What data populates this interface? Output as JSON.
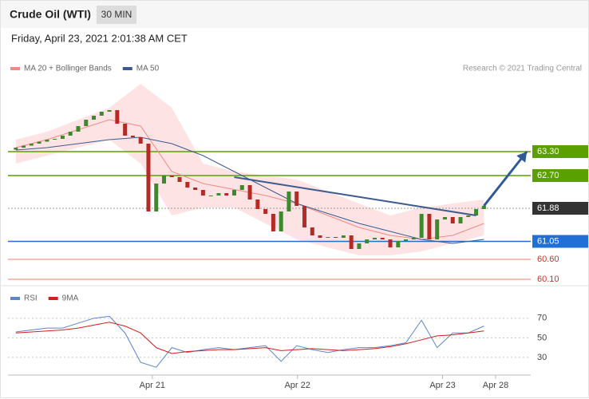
{
  "chart_data": [
    {
      "type": "candlestick",
      "title": "Crude Oil (WTI)",
      "timeframe": "30 MIN",
      "subtitle": "Friday, April 23, 2021 2:01:38 AM CET",
      "credit": "Research © 2021 Trading Central",
      "xlim": [
        -1,
        66
      ],
      "ylim": [
        60,
        65.2
      ],
      "up_color": "#3d8a2c",
      "down_color": "#b52a24",
      "x": [
        0,
        1,
        2,
        3,
        4,
        5,
        6,
        7,
        8,
        9,
        10,
        11,
        12,
        13,
        14,
        15,
        16,
        17,
        18,
        19,
        20,
        21,
        22,
        23,
        24,
        25,
        26,
        27,
        28,
        29,
        30,
        31,
        32,
        33,
        34,
        35,
        36,
        37,
        38,
        39,
        40,
        41,
        42,
        43,
        44,
        45,
        46,
        47,
        48,
        49,
        50,
        51,
        52,
        53,
        54,
        55,
        56,
        57,
        58,
        59,
        60
      ],
      "open": [
        63.35,
        63.4,
        63.45,
        63.5,
        63.55,
        63.6,
        63.62,
        63.7,
        63.8,
        63.94,
        64.1,
        64.2,
        64.3,
        64.34,
        64.0,
        63.7,
        63.66,
        63.5,
        61.8,
        62.5,
        62.7,
        62.66,
        62.54,
        62.4,
        62.34,
        62.2,
        62.2,
        62.26,
        62.2,
        62.34,
        62.46,
        62.1,
        61.86,
        61.74,
        61.3,
        61.8,
        62.3,
        61.94,
        61.4,
        61.2,
        61.14,
        61.16,
        61.14,
        61.2,
        60.86,
        61.0,
        61.1,
        61.14,
        61.1,
        60.9,
        61.06,
        61.1,
        61.14,
        61.74,
        61.1,
        61.6,
        61.66,
        61.5,
        61.66,
        61.7,
        61.86
      ],
      "close": [
        63.4,
        63.45,
        63.5,
        63.55,
        63.6,
        63.62,
        63.7,
        63.8,
        63.94,
        64.1,
        64.2,
        64.3,
        64.34,
        64.0,
        63.7,
        63.66,
        63.5,
        61.8,
        62.5,
        62.7,
        62.66,
        62.54,
        62.4,
        62.34,
        62.2,
        62.2,
        62.26,
        62.2,
        62.34,
        62.46,
        62.1,
        61.86,
        61.74,
        61.3,
        61.8,
        62.3,
        61.94,
        61.4,
        61.2,
        61.14,
        61.16,
        61.14,
        61.2,
        60.86,
        61.0,
        61.1,
        61.14,
        61.1,
        60.9,
        61.06,
        61.1,
        61.14,
        61.74,
        61.1,
        61.6,
        61.66,
        61.5,
        61.66,
        61.7,
        61.86,
        61.94
      ],
      "series": [
        {
          "name": "MA 20 + Bollinger Bands",
          "color": "#f08a86",
          "band_color": "#fde3e3",
          "x": [
            0,
            4,
            8,
            12,
            16,
            20,
            24,
            28,
            32,
            36,
            40,
            44,
            48,
            52,
            56,
            60
          ],
          "values": [
            63.4,
            63.6,
            63.85,
            64.1,
            63.94,
            62.8,
            62.5,
            62.35,
            62.2,
            62.0,
            61.7,
            61.4,
            61.2,
            61.1,
            61.2,
            61.5
          ],
          "upper": [
            63.6,
            63.8,
            64.1,
            64.4,
            65.0,
            64.4,
            63.0,
            62.8,
            62.7,
            62.6,
            62.3,
            62.0,
            61.7,
            61.9,
            62.0,
            62.1
          ],
          "lower": [
            63.0,
            63.2,
            63.4,
            63.6,
            63.0,
            61.7,
            61.9,
            61.9,
            61.5,
            61.1,
            60.9,
            60.7,
            60.7,
            60.8,
            61.0,
            61.2
          ]
        },
        {
          "name": "MA 50",
          "color": "#3b5b8e",
          "x": [
            0,
            4,
            8,
            12,
            16,
            20,
            24,
            28,
            32,
            36,
            40,
            44,
            48,
            52,
            56,
            60
          ],
          "values": [
            63.34,
            63.4,
            63.5,
            63.6,
            63.66,
            63.5,
            63.2,
            62.8,
            62.4,
            62.0,
            61.75,
            61.5,
            61.3,
            61.1,
            61.0,
            61.1
          ]
        }
      ],
      "trendline": {
        "color": "#3b5b8e",
        "x": [
          28,
          59
        ],
        "values": [
          62.66,
          61.7
        ]
      },
      "arrow": {
        "color": "#2f5a94",
        "x": [
          60,
          65.5
        ],
        "values": [
          61.94,
          63.3
        ]
      },
      "levels": [
        {
          "value": 63.3,
          "label": "63.30",
          "color": "#5aa100",
          "line_color": "#5aa100",
          "style": "box"
        },
        {
          "value": 62.7,
          "label": "62.70",
          "color": "#5aa100",
          "line_color": "#5aa100",
          "style": "box"
        },
        {
          "value": 61.88,
          "label": "61.88",
          "color": "#333333",
          "line_color": "#999999",
          "style": "box",
          "dash": true
        },
        {
          "value": 61.05,
          "label": "61.05",
          "color": "#1f6fd6",
          "line_color": "#1f6fd6",
          "style": "box"
        },
        {
          "value": 60.6,
          "label": "60.60",
          "color": "#c0392b",
          "line_color": "#f3a99c",
          "style": "text"
        },
        {
          "value": 60.1,
          "label": "60.10",
          "color": "#c0392b",
          "line_color": "#f3a99c",
          "style": "text"
        }
      ]
    },
    {
      "type": "line",
      "xlim": [
        -1,
        66
      ],
      "ylim": [
        12,
        100
      ],
      "yticks": [
        70,
        50,
        30
      ],
      "xticks": [
        {
          "value": 17.5,
          "label": "Apr 21"
        },
        {
          "value": 36.1,
          "label": "Apr 22"
        },
        {
          "value": 54.7,
          "label": "Apr 23"
        },
        {
          "value": 61.5,
          "label": "Apr 28"
        }
      ],
      "series": [
        {
          "name": "RSI",
          "color": "#5b86cc",
          "x": [
            0,
            2,
            4,
            6,
            8,
            10,
            12,
            14,
            16,
            18,
            20,
            22,
            24,
            26,
            28,
            30,
            32,
            34,
            36,
            38,
            40,
            42,
            44,
            46,
            48,
            50,
            52,
            54,
            56,
            58,
            60
          ],
          "values": [
            56,
            58,
            60,
            60,
            65,
            70,
            72,
            55,
            25,
            20,
            40,
            35,
            38,
            40,
            38,
            40,
            42,
            26,
            42,
            38,
            35,
            38,
            40,
            40,
            42,
            45,
            68,
            40,
            55,
            55,
            62
          ]
        },
        {
          "name": "9MA",
          "color": "#d0201c",
          "x": [
            0,
            2,
            4,
            6,
            8,
            10,
            12,
            14,
            16,
            18,
            20,
            22,
            24,
            26,
            28,
            30,
            32,
            34,
            36,
            38,
            40,
            42,
            44,
            46,
            48,
            50,
            52,
            54,
            56,
            58,
            60
          ],
          "values": [
            55,
            56,
            57,
            58,
            60,
            63,
            66,
            62,
            55,
            40,
            34,
            36,
            37,
            38,
            38,
            39,
            40,
            37,
            38,
            39,
            38,
            37,
            38,
            39,
            41,
            44,
            48,
            52,
            53,
            55,
            57
          ]
        }
      ]
    }
  ]
}
